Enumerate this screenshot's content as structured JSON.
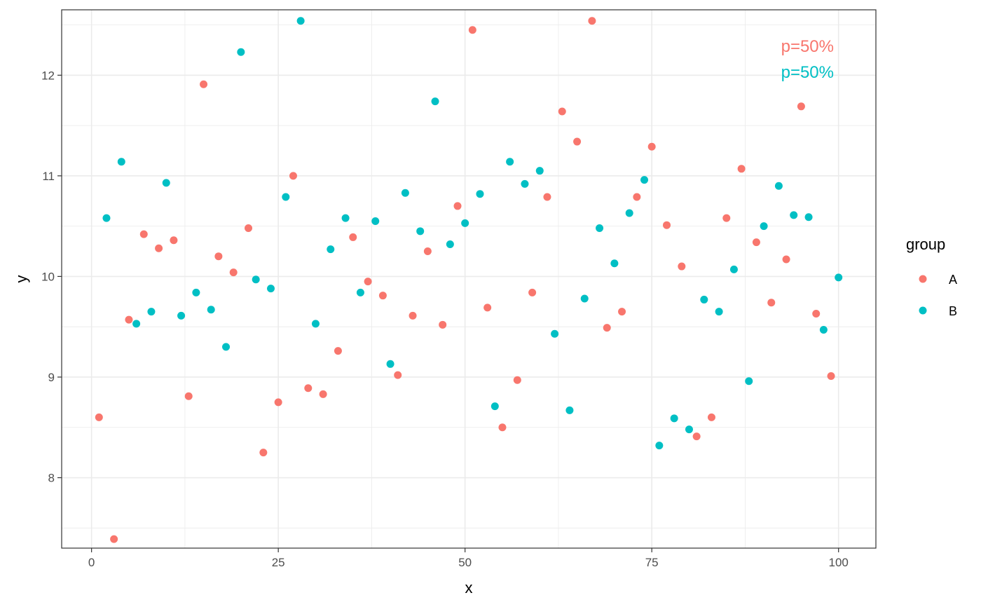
{
  "chart_data": {
    "type": "scatter",
    "title": "",
    "xlabel": "x",
    "ylabel": "y",
    "xlim": [
      -4,
      105
    ],
    "ylim": [
      7.3,
      12.65
    ],
    "x_ticks": [
      0,
      25,
      50,
      75,
      100
    ],
    "x_tick_labels": [
      "0",
      "25",
      "50",
      "75",
      "100"
    ],
    "y_ticks": [
      8,
      9,
      10,
      11,
      12
    ],
    "y_tick_labels": [
      "8",
      "9",
      "10",
      "11",
      "12"
    ],
    "grid": true,
    "legend": {
      "title": "group",
      "placement": "right"
    },
    "annotations": [
      {
        "text": "p=50%",
        "series": "A"
      },
      {
        "text": "p=50%",
        "series": "B"
      }
    ],
    "series": [
      {
        "name": "A",
        "color": "#F8766D",
        "points": [
          [
            1,
            8.6
          ],
          [
            3,
            7.39
          ],
          [
            5,
            9.57
          ],
          [
            7,
            10.42
          ],
          [
            9,
            10.28
          ],
          [
            11,
            10.36
          ],
          [
            13,
            8.81
          ],
          [
            15,
            11.91
          ],
          [
            17,
            10.2
          ],
          [
            19,
            10.04
          ],
          [
            21,
            10.48
          ],
          [
            23,
            8.25
          ],
          [
            25,
            8.75
          ],
          [
            27,
            11.0
          ],
          [
            29,
            8.89
          ],
          [
            31,
            8.83
          ],
          [
            33,
            9.26
          ],
          [
            35,
            10.39
          ],
          [
            37,
            9.95
          ],
          [
            39,
            9.81
          ],
          [
            41,
            9.02
          ],
          [
            43,
            9.61
          ],
          [
            45,
            10.25
          ],
          [
            47,
            9.52
          ],
          [
            49,
            10.7
          ],
          [
            51,
            12.45
          ],
          [
            53,
            9.69
          ],
          [
            55,
            8.5
          ],
          [
            57,
            8.97
          ],
          [
            59,
            9.84
          ],
          [
            61,
            10.79
          ],
          [
            63,
            11.64
          ],
          [
            65,
            11.34
          ],
          [
            67,
            12.54
          ],
          [
            69,
            9.49
          ],
          [
            71,
            9.65
          ],
          [
            73,
            10.79
          ],
          [
            75,
            11.29
          ],
          [
            77,
            10.51
          ],
          [
            79,
            10.1
          ],
          [
            81,
            8.41
          ],
          [
            83,
            8.6
          ],
          [
            85,
            10.58
          ],
          [
            87,
            11.07
          ],
          [
            89,
            10.34
          ],
          [
            91,
            9.74
          ],
          [
            93,
            10.17
          ],
          [
            95,
            11.69
          ],
          [
            97,
            9.63
          ],
          [
            99,
            9.01
          ]
        ]
      },
      {
        "name": "B",
        "color": "#00BFC4",
        "points": [
          [
            2,
            10.58
          ],
          [
            4,
            11.14
          ],
          [
            6,
            9.53
          ],
          [
            8,
            9.65
          ],
          [
            10,
            10.93
          ],
          [
            12,
            9.61
          ],
          [
            14,
            9.84
          ],
          [
            16,
            9.67
          ],
          [
            18,
            9.3
          ],
          [
            20,
            12.23
          ],
          [
            22,
            9.97
          ],
          [
            24,
            9.88
          ],
          [
            26,
            10.79
          ],
          [
            28,
            12.54
          ],
          [
            30,
            9.53
          ],
          [
            32,
            10.27
          ],
          [
            34,
            10.58
          ],
          [
            36,
            9.84
          ],
          [
            38,
            10.55
          ],
          [
            40,
            9.13
          ],
          [
            42,
            10.83
          ],
          [
            44,
            10.45
          ],
          [
            46,
            11.74
          ],
          [
            48,
            10.32
          ],
          [
            50,
            10.53
          ],
          [
            52,
            10.82
          ],
          [
            54,
            8.71
          ],
          [
            56,
            11.14
          ],
          [
            58,
            10.92
          ],
          [
            60,
            11.05
          ],
          [
            62,
            9.43
          ],
          [
            64,
            8.67
          ],
          [
            66,
            9.78
          ],
          [
            68,
            10.48
          ],
          [
            70,
            10.13
          ],
          [
            72,
            10.63
          ],
          [
            74,
            10.96
          ],
          [
            76,
            8.32
          ],
          [
            78,
            8.59
          ],
          [
            80,
            8.48
          ],
          [
            82,
            9.77
          ],
          [
            84,
            9.65
          ],
          [
            86,
            10.07
          ],
          [
            88,
            8.96
          ],
          [
            90,
            10.5
          ],
          [
            92,
            10.9
          ],
          [
            94,
            10.61
          ],
          [
            96,
            10.59
          ],
          [
            98,
            9.47
          ],
          [
            100,
            9.99
          ]
        ]
      }
    ]
  }
}
